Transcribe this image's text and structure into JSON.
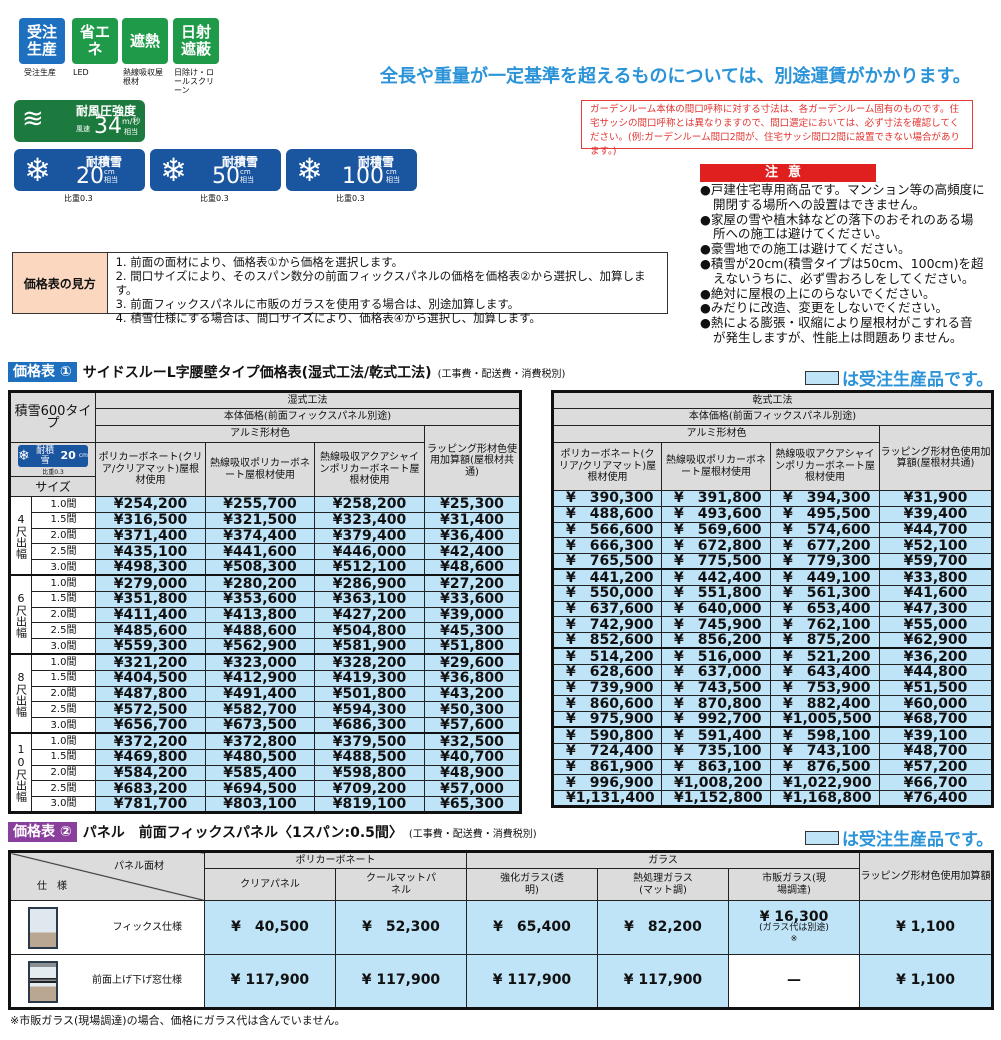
{
  "badges": [
    {
      "label": "受注生産",
      "caption": "受注生産",
      "color": "#1d6fbf"
    },
    {
      "label": "省エネ",
      "caption": "LED",
      "color": "#1e9a48"
    },
    {
      "label": "遮熱",
      "caption": "熱線吸収屋根材",
      "color": "#1e9a48"
    },
    {
      "label": "日射遮蔽",
      "caption": "日除け・ロールスクリーン",
      "color": "#1e9a48"
    }
  ],
  "headline": "全長や重量が一定基準を超えるものについては、別途運賃がかかります。",
  "wind": {
    "title": "耐風圧強度",
    "prefix": "風速",
    "value": "34",
    "unit": "m/秒",
    "suffix": "相当"
  },
  "snow": [
    {
      "title": "耐積雪",
      "value": "20",
      "unit": "cm",
      "suffix": "相当",
      "ratio": "比重0.3"
    },
    {
      "title": "耐積雪",
      "value": "50",
      "unit": "cm",
      "suffix": "相当",
      "ratio": "比重0.3"
    },
    {
      "title": "耐積雪",
      "value": "100",
      "unit": "cm",
      "suffix": "相当",
      "ratio": "比重0.3"
    }
  ],
  "red_note": "ガーデンルーム本体の間口呼称に対する寸法は、各ガーデンルーム固有のものです。住宅サッシの間口呼称とは異なりますので、間口選定においては、必ず寸法を確認してください。(例:ガーデンルーム間口2間が、住宅サッシ間口2間に設置できない場合があります。)",
  "caution": {
    "title": "注意",
    "items": [
      "●戸建住宅専用商品です。マンション等の高頻度に開閉する場所への設置はできません。",
      "●家屋の雪や植木鉢などの落下のおそれのある場所への施工は避けてください。",
      "●豪雪地での施工は避けてください。",
      "●積雪が20cm(積雪タイプは50cm、100cm)を超えないうちに、必ず雪おろしをしてください。",
      "●絶対に屋根の上にのらないでください。",
      "●みだりに改造、変更をしないでください。",
      "●熱による膨張・収縮により屋根材がこすれる音が発生しますが、性能上は問題ありません。"
    ]
  },
  "howto": {
    "label": "価格表の見方",
    "lines": [
      "1. 前面の面材により、価格表①から価格を選択します。",
      "2. 間口サイズにより、そのスパン数分の前面フィックスパネルの価格を価格表②から選択し、加算します。",
      "3. 前面フィックスパネルに市販のガラスを使用する場合は、別途加算します。",
      "4. 積雪仕様にする場合は、間口サイズにより、価格表④から選択し、加算します。"
    ]
  },
  "legend": "は受注生産品です。",
  "table1": {
    "tag": "価格表 ①",
    "title": "サイドスルーL字腰壁タイプ価格表(湿式工法/乾式工法)",
    "note": "(工事費・配送費・消費税別)",
    "type_label": "積雪600タイプ",
    "snow_badge": {
      "title": "耐積雪",
      "value": "20",
      "unit": "cm",
      "ratio": "比重0.3"
    },
    "size_label": "サイズ",
    "wet": {
      "method": "湿式工法",
      "body": "本体価格(前面フィックスパネル別途)",
      "alu": "アルミ形材色"
    },
    "dry": {
      "method": "乾式工法",
      "body": "本体価格(前面フィックスパネル別途)",
      "alu": "アルミ形材色"
    },
    "columns": [
      "ポリカーボネート(クリア/クリアマット)屋根材使用",
      "熱線吸収ポリカーボネート屋根材使用",
      "熱線吸収アクアシャインポリカーボネート屋根材使用",
      "ラッピング形材色使用加算額(屋根材共通)"
    ],
    "groups": [
      {
        "label": "4尺出幅",
        "rows": [
          {
            "size": "1.0間",
            "wet": [
              "¥254,200",
              "¥255,700",
              "¥258,200",
              "¥25,300"
            ],
            "dry": [
              "¥　390,300",
              "¥　391,800",
              "¥　394,300",
              "¥31,900"
            ]
          },
          {
            "size": "1.5間",
            "wet": [
              "¥316,500",
              "¥321,500",
              "¥323,400",
              "¥31,400"
            ],
            "dry": [
              "¥　488,600",
              "¥　493,600",
              "¥　495,500",
              "¥39,400"
            ]
          },
          {
            "size": "2.0間",
            "wet": [
              "¥371,400",
              "¥374,400",
              "¥379,400",
              "¥36,400"
            ],
            "dry": [
              "¥　566,600",
              "¥　569,600",
              "¥　574,600",
              "¥44,700"
            ]
          },
          {
            "size": "2.5間",
            "wet": [
              "¥435,100",
              "¥441,600",
              "¥446,000",
              "¥42,400"
            ],
            "dry": [
              "¥　666,300",
              "¥　672,800",
              "¥　677,200",
              "¥52,100"
            ]
          },
          {
            "size": "3.0間",
            "wet": [
              "¥498,300",
              "¥508,300",
              "¥512,100",
              "¥48,600"
            ],
            "dry": [
              "¥　765,500",
              "¥　775,500",
              "¥　779,300",
              "¥59,700"
            ]
          }
        ]
      },
      {
        "label": "6尺出幅",
        "rows": [
          {
            "size": "1.0間",
            "wet": [
              "¥279,000",
              "¥280,200",
              "¥286,900",
              "¥27,200"
            ],
            "dry": [
              "¥　441,200",
              "¥　442,400",
              "¥　449,100",
              "¥33,800"
            ]
          },
          {
            "size": "1.5間",
            "wet": [
              "¥351,800",
              "¥353,600",
              "¥363,100",
              "¥33,600"
            ],
            "dry": [
              "¥　550,000",
              "¥　551,800",
              "¥　561,300",
              "¥41,600"
            ]
          },
          {
            "size": "2.0間",
            "wet": [
              "¥411,400",
              "¥413,800",
              "¥427,200",
              "¥39,000"
            ],
            "dry": [
              "¥　637,600",
              "¥　640,000",
              "¥　653,400",
              "¥47,300"
            ]
          },
          {
            "size": "2.5間",
            "wet": [
              "¥485,600",
              "¥488,600",
              "¥504,800",
              "¥45,300"
            ],
            "dry": [
              "¥　742,900",
              "¥　745,900",
              "¥　762,100",
              "¥55,000"
            ]
          },
          {
            "size": "3.0間",
            "wet": [
              "¥559,300",
              "¥562,900",
              "¥581,900",
              "¥51,800"
            ],
            "dry": [
              "¥　852,600",
              "¥　856,200",
              "¥　875,200",
              "¥62,900"
            ]
          }
        ]
      },
      {
        "label": "8尺出幅",
        "rows": [
          {
            "size": "1.0間",
            "wet": [
              "¥321,200",
              "¥323,000",
              "¥328,200",
              "¥29,600"
            ],
            "dry": [
              "¥　514,200",
              "¥　516,000",
              "¥　521,200",
              "¥36,200"
            ]
          },
          {
            "size": "1.5間",
            "wet": [
              "¥404,500",
              "¥412,900",
              "¥419,300",
              "¥36,800"
            ],
            "dry": [
              "¥　628,600",
              "¥　637,000",
              "¥　643,400",
              "¥44,800"
            ]
          },
          {
            "size": "2.0間",
            "wet": [
              "¥487,800",
              "¥491,400",
              "¥501,800",
              "¥43,200"
            ],
            "dry": [
              "¥　739,900",
              "¥　743,500",
              "¥　753,900",
              "¥51,500"
            ]
          },
          {
            "size": "2.5間",
            "wet": [
              "¥572,500",
              "¥582,700",
              "¥594,300",
              "¥50,300"
            ],
            "dry": [
              "¥　860,600",
              "¥　870,800",
              "¥　882,400",
              "¥60,000"
            ]
          },
          {
            "size": "3.0間",
            "wet": [
              "¥656,700",
              "¥673,500",
              "¥686,300",
              "¥57,600"
            ],
            "dry": [
              "¥　975,900",
              "¥　992,700",
              "¥1,005,500",
              "¥68,700"
            ]
          }
        ]
      },
      {
        "label": "10尺出幅",
        "rows": [
          {
            "size": "1.0間",
            "wet": [
              "¥372,200",
              "¥372,800",
              "¥379,500",
              "¥32,500"
            ],
            "dry": [
              "¥　590,800",
              "¥　591,400",
              "¥　598,100",
              "¥39,100"
            ]
          },
          {
            "size": "1.5間",
            "wet": [
              "¥469,800",
              "¥480,500",
              "¥488,500",
              "¥40,700"
            ],
            "dry": [
              "¥　724,400",
              "¥　735,100",
              "¥　743,100",
              "¥48,700"
            ]
          },
          {
            "size": "2.0間",
            "wet": [
              "¥584,200",
              "¥585,400",
              "¥598,800",
              "¥48,900"
            ],
            "dry": [
              "¥　861,900",
              "¥　863,100",
              "¥　876,500",
              "¥57,200"
            ]
          },
          {
            "size": "2.5間",
            "wet": [
              "¥683,200",
              "¥694,500",
              "¥709,200",
              "¥57,000"
            ],
            "dry": [
              "¥　996,900",
              "¥1,008,200",
              "¥1,022,900",
              "¥66,700"
            ]
          },
          {
            "size": "3.0間",
            "wet": [
              "¥781,700",
              "¥803,100",
              "¥819,100",
              "¥65,300"
            ],
            "dry": [
              "¥1,131,400",
              "¥1,152,800",
              "¥1,168,800",
              "¥76,400"
            ]
          }
        ]
      }
    ]
  },
  "table2": {
    "tag": "価格表 ②",
    "title": "パネル　前面フィックスパネル〈1スパン:0.5間〉",
    "note": "(工事費・配送費・消費税別)",
    "corner_top": "パネル面材",
    "corner_bottom": "仕　様",
    "poly": "ポリカーボネート",
    "glass": "ガラス",
    "wrap": "ラッピング形材色使用加算額",
    "columns": [
      "クリアパネル",
      "クールマットパネル",
      "強化ガラス(透明)",
      "熱処理ガラス(マット調)",
      "市販ガラス(現場調達)"
    ],
    "rows": [
      {
        "spec": "フィックス仕様",
        "values": [
          "¥　40,500",
          "¥　52,300",
          "¥　65,400",
          "¥　82,200",
          "¥ 16,300"
        ],
        "glass_note": "(ガラス代は別途)",
        "mark": "※",
        "wrap": "¥ 1,100"
      },
      {
        "spec": "前面上げ下げ窓仕様",
        "values": [
          "¥ 117,900",
          "¥ 117,900",
          "¥ 117,900",
          "¥ 117,900",
          "—"
        ],
        "wrap": "¥ 1,100"
      }
    ],
    "footnote": "※市販ガラス(現場調達)の場合、価格にガラス代は含んでいません。"
  },
  "colors": {
    "order_cell": "#bfe3f7",
    "header": "#dcdcdc",
    "tag1": "#1e6fbd",
    "tag2": "#8a3f9c",
    "headline": "#2b93d8"
  }
}
